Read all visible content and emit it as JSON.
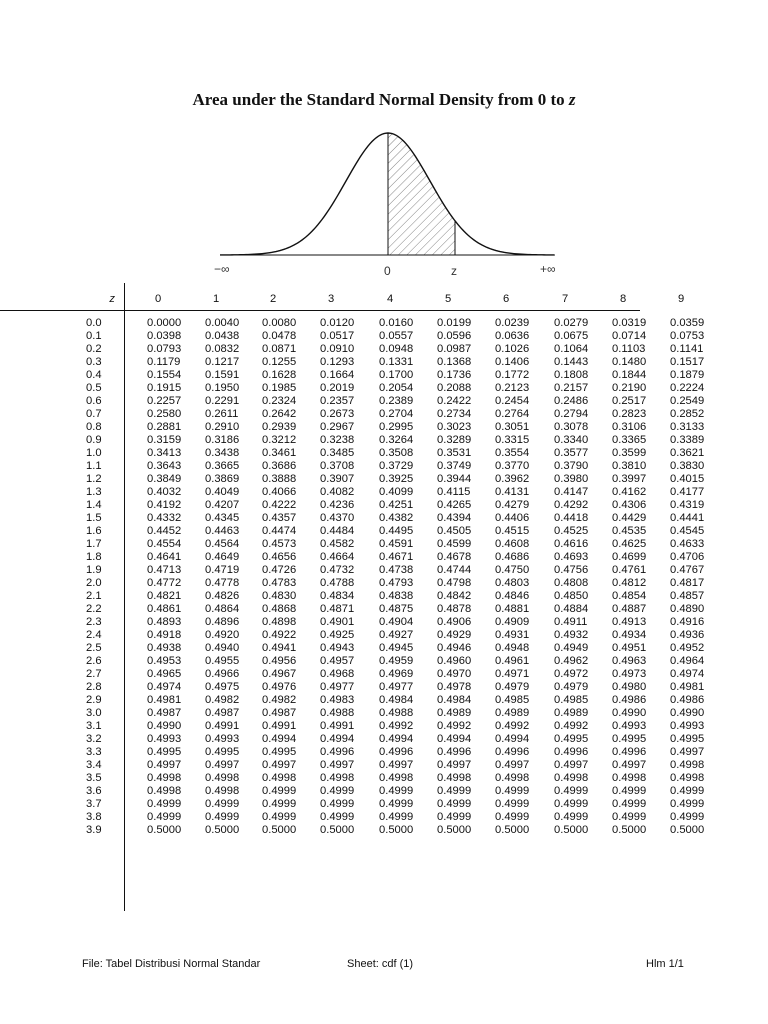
{
  "title": {
    "main": "Area under the Standard Normal Density from 0 to",
    "var": "z"
  },
  "curve_labels": {
    "neg_inf": "−∞",
    "zero": "0",
    "z": "z",
    "pos_inf": "+∞"
  },
  "table": {
    "z_header": "z",
    "columns": [
      "0",
      "1",
      "2",
      "3",
      "4",
      "5",
      "6",
      "7",
      "8",
      "9"
    ],
    "rows": [
      {
        "z": "0.0",
        "v": [
          "0.0000",
          "0.0040",
          "0.0080",
          "0.0120",
          "0.0160",
          "0.0199",
          "0.0239",
          "0.0279",
          "0.0319",
          "0.0359"
        ]
      },
      {
        "z": "0.1",
        "v": [
          "0.0398",
          "0.0438",
          "0.0478",
          "0.0517",
          "0.0557",
          "0.0596",
          "0.0636",
          "0.0675",
          "0.0714",
          "0.0753"
        ]
      },
      {
        "z": "0.2",
        "v": [
          "0.0793",
          "0.0832",
          "0.0871",
          "0.0910",
          "0.0948",
          "0.0987",
          "0.1026",
          "0.1064",
          "0.1103",
          "0.1141"
        ]
      },
      {
        "z": "0.3",
        "v": [
          "0.1179",
          "0.1217",
          "0.1255",
          "0.1293",
          "0.1331",
          "0.1368",
          "0.1406",
          "0.1443",
          "0.1480",
          "0.1517"
        ]
      },
      {
        "z": "0.4",
        "v": [
          "0.1554",
          "0.1591",
          "0.1628",
          "0.1664",
          "0.1700",
          "0.1736",
          "0.1772",
          "0.1808",
          "0.1844",
          "0.1879"
        ]
      },
      {
        "z": "0.5",
        "v": [
          "0.1915",
          "0.1950",
          "0.1985",
          "0.2019",
          "0.2054",
          "0.2088",
          "0.2123",
          "0.2157",
          "0.2190",
          "0.2224"
        ]
      },
      {
        "z": "0.6",
        "v": [
          "0.2257",
          "0.2291",
          "0.2324",
          "0.2357",
          "0.2389",
          "0.2422",
          "0.2454",
          "0.2486",
          "0.2517",
          "0.2549"
        ]
      },
      {
        "z": "0.7",
        "v": [
          "0.2580",
          "0.2611",
          "0.2642",
          "0.2673",
          "0.2704",
          "0.2734",
          "0.2764",
          "0.2794",
          "0.2823",
          "0.2852"
        ]
      },
      {
        "z": "0.8",
        "v": [
          "0.2881",
          "0.2910",
          "0.2939",
          "0.2967",
          "0.2995",
          "0.3023",
          "0.3051",
          "0.3078",
          "0.3106",
          "0.3133"
        ]
      },
      {
        "z": "0.9",
        "v": [
          "0.3159",
          "0.3186",
          "0.3212",
          "0.3238",
          "0.3264",
          "0.3289",
          "0.3315",
          "0.3340",
          "0.3365",
          "0.3389"
        ]
      },
      {
        "z": "1.0",
        "v": [
          "0.3413",
          "0.3438",
          "0.3461",
          "0.3485",
          "0.3508",
          "0.3531",
          "0.3554",
          "0.3577",
          "0.3599",
          "0.3621"
        ]
      },
      {
        "z": "1.1",
        "v": [
          "0.3643",
          "0.3665",
          "0.3686",
          "0.3708",
          "0.3729",
          "0.3749",
          "0.3770",
          "0.3790",
          "0.3810",
          "0.3830"
        ]
      },
      {
        "z": "1.2",
        "v": [
          "0.3849",
          "0.3869",
          "0.3888",
          "0.3907",
          "0.3925",
          "0.3944",
          "0.3962",
          "0.3980",
          "0.3997",
          "0.4015"
        ]
      },
      {
        "z": "1.3",
        "v": [
          "0.4032",
          "0.4049",
          "0.4066",
          "0.4082",
          "0.4099",
          "0.4115",
          "0.4131",
          "0.4147",
          "0.4162",
          "0.4177"
        ]
      },
      {
        "z": "1.4",
        "v": [
          "0.4192",
          "0.4207",
          "0.4222",
          "0.4236",
          "0.4251",
          "0.4265",
          "0.4279",
          "0.4292",
          "0.4306",
          "0.4319"
        ]
      },
      {
        "z": "1.5",
        "v": [
          "0.4332",
          "0.4345",
          "0.4357",
          "0.4370",
          "0.4382",
          "0.4394",
          "0.4406",
          "0.4418",
          "0.4429",
          "0.4441"
        ]
      },
      {
        "z": "1.6",
        "v": [
          "0.4452",
          "0.4463",
          "0.4474",
          "0.4484",
          "0.4495",
          "0.4505",
          "0.4515",
          "0.4525",
          "0.4535",
          "0.4545"
        ]
      },
      {
        "z": "1.7",
        "v": [
          "0.4554",
          "0.4564",
          "0.4573",
          "0.4582",
          "0.4591",
          "0.4599",
          "0.4608",
          "0.4616",
          "0.4625",
          "0.4633"
        ]
      },
      {
        "z": "1.8",
        "v": [
          "0.4641",
          "0.4649",
          "0.4656",
          "0.4664",
          "0.4671",
          "0.4678",
          "0.4686",
          "0.4693",
          "0.4699",
          "0.4706"
        ]
      },
      {
        "z": "1.9",
        "v": [
          "0.4713",
          "0.4719",
          "0.4726",
          "0.4732",
          "0.4738",
          "0.4744",
          "0.4750",
          "0.4756",
          "0.4761",
          "0.4767"
        ]
      },
      {
        "z": "2.0",
        "v": [
          "0.4772",
          "0.4778",
          "0.4783",
          "0.4788",
          "0.4793",
          "0.4798",
          "0.4803",
          "0.4808",
          "0.4812",
          "0.4817"
        ]
      },
      {
        "z": "2.1",
        "v": [
          "0.4821",
          "0.4826",
          "0.4830",
          "0.4834",
          "0.4838",
          "0.4842",
          "0.4846",
          "0.4850",
          "0.4854",
          "0.4857"
        ]
      },
      {
        "z": "2.2",
        "v": [
          "0.4861",
          "0.4864",
          "0.4868",
          "0.4871",
          "0.4875",
          "0.4878",
          "0.4881",
          "0.4884",
          "0.4887",
          "0.4890"
        ]
      },
      {
        "z": "2.3",
        "v": [
          "0.4893",
          "0.4896",
          "0.4898",
          "0.4901",
          "0.4904",
          "0.4906",
          "0.4909",
          "0.4911",
          "0.4913",
          "0.4916"
        ]
      },
      {
        "z": "2.4",
        "v": [
          "0.4918",
          "0.4920",
          "0.4922",
          "0.4925",
          "0.4927",
          "0.4929",
          "0.4931",
          "0.4932",
          "0.4934",
          "0.4936"
        ]
      },
      {
        "z": "2.5",
        "v": [
          "0.4938",
          "0.4940",
          "0.4941",
          "0.4943",
          "0.4945",
          "0.4946",
          "0.4948",
          "0.4949",
          "0.4951",
          "0.4952"
        ]
      },
      {
        "z": "2.6",
        "v": [
          "0.4953",
          "0.4955",
          "0.4956",
          "0.4957",
          "0.4959",
          "0.4960",
          "0.4961",
          "0.4962",
          "0.4963",
          "0.4964"
        ]
      },
      {
        "z": "2.7",
        "v": [
          "0.4965",
          "0.4966",
          "0.4967",
          "0.4968",
          "0.4969",
          "0.4970",
          "0.4971",
          "0.4972",
          "0.4973",
          "0.4974"
        ]
      },
      {
        "z": "2.8",
        "v": [
          "0.4974",
          "0.4975",
          "0.4976",
          "0.4977",
          "0.4977",
          "0.4978",
          "0.4979",
          "0.4979",
          "0.4980",
          "0.4981"
        ]
      },
      {
        "z": "2.9",
        "v": [
          "0.4981",
          "0.4982",
          "0.4982",
          "0.4983",
          "0.4984",
          "0.4984",
          "0.4985",
          "0.4985",
          "0.4986",
          "0.4986"
        ]
      },
      {
        "z": "3.0",
        "v": [
          "0.4987",
          "0.4987",
          "0.4987",
          "0.4988",
          "0.4988",
          "0.4989",
          "0.4989",
          "0.4989",
          "0.4990",
          "0.4990"
        ]
      },
      {
        "z": "3.1",
        "v": [
          "0.4990",
          "0.4991",
          "0.4991",
          "0.4991",
          "0.4992",
          "0.4992",
          "0.4992",
          "0.4992",
          "0.4993",
          "0.4993"
        ]
      },
      {
        "z": "3.2",
        "v": [
          "0.4993",
          "0.4993",
          "0.4994",
          "0.4994",
          "0.4994",
          "0.4994",
          "0.4994",
          "0.4995",
          "0.4995",
          "0.4995"
        ]
      },
      {
        "z": "3.3",
        "v": [
          "0.4995",
          "0.4995",
          "0.4995",
          "0.4996",
          "0.4996",
          "0.4996",
          "0.4996",
          "0.4996",
          "0.4996",
          "0.4997"
        ]
      },
      {
        "z": "3.4",
        "v": [
          "0.4997",
          "0.4997",
          "0.4997",
          "0.4997",
          "0.4997",
          "0.4997",
          "0.4997",
          "0.4997",
          "0.4997",
          "0.4998"
        ]
      },
      {
        "z": "3.5",
        "v": [
          "0.4998",
          "0.4998",
          "0.4998",
          "0.4998",
          "0.4998",
          "0.4998",
          "0.4998",
          "0.4998",
          "0.4998",
          "0.4998"
        ]
      },
      {
        "z": "3.6",
        "v": [
          "0.4998",
          "0.4998",
          "0.4999",
          "0.4999",
          "0.4999",
          "0.4999",
          "0.4999",
          "0.4999",
          "0.4999",
          "0.4999"
        ]
      },
      {
        "z": "3.7",
        "v": [
          "0.4999",
          "0.4999",
          "0.4999",
          "0.4999",
          "0.4999",
          "0.4999",
          "0.4999",
          "0.4999",
          "0.4999",
          "0.4999"
        ]
      },
      {
        "z": "3.8",
        "v": [
          "0.4999",
          "0.4999",
          "0.4999",
          "0.4999",
          "0.4999",
          "0.4999",
          "0.4999",
          "0.4999",
          "0.4999",
          "0.4999"
        ]
      },
      {
        "z": "3.9",
        "v": [
          "0.5000",
          "0.5000",
          "0.5000",
          "0.5000",
          "0.5000",
          "0.5000",
          "0.5000",
          "0.5000",
          "0.5000",
          "0.5000"
        ]
      }
    ]
  },
  "footer": {
    "file": "File: Tabel Distribusi Normal Standar",
    "sheet": "Sheet: cdf (1)",
    "page": "Hlm 1/1"
  }
}
